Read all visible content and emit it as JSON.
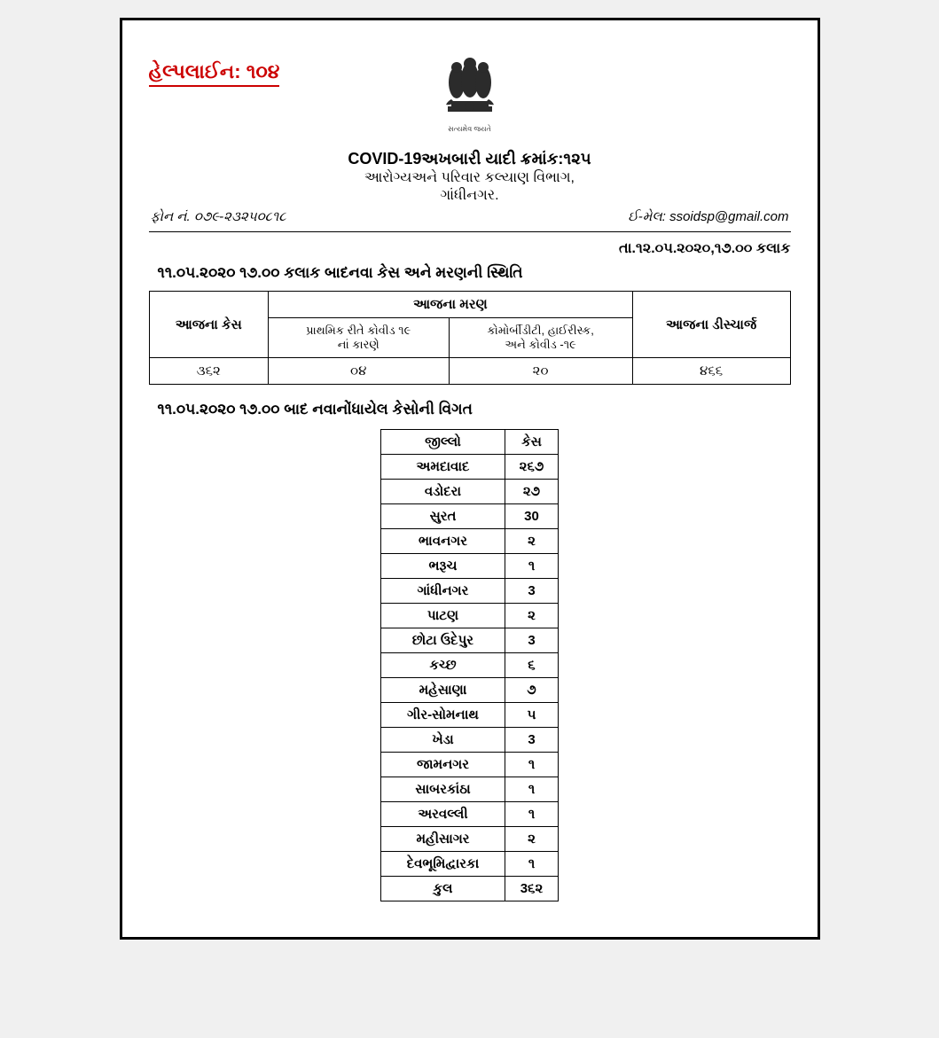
{
  "helpline": "હેલ્પલાઈન: ૧૦૪",
  "emblem_caption": "સત્યમેવ જયતે",
  "title_main": "COVID-19અખબારી યાદી ક્રમાંક:૧૨૫",
  "title_sub": "આરોગ્યઅને પરિવાર કલ્યાણ વિભાગ,",
  "title_city": "ગાંધીનગર.",
  "phone_label": "ફોન નં. ૦૭૯-૨૩૨૫૦૮૧૮",
  "email_label": "ઈ-મેલ:",
  "email_value": "ssoidsp@gmail.com",
  "date_line": "તા.૧૨.૦૫.૨૦૨૦,૧૭.૦૦ કલાક",
  "section_title": "૧૧.૦૫.૨૦૨૦ ૧૭.૦૦ કલાક બાદનવા કેસ અને મરણની સ્થિતિ",
  "summary": {
    "col1_header": "આજના કેસ",
    "col2_header": "આજના મરણ",
    "col3_header": "આજના ડીસ્ચાર્જ",
    "sub1_line1": "પ્રાથમિક રીતે કોવીડ ૧૯",
    "sub1_line2": "નાં કારણે",
    "sub2_line1": "કોમોર્બીડીટી, હાઈરીસ્ક,",
    "sub2_line2": "અને કોવીડ -૧૯",
    "today_cases": "૩૬૨",
    "death1": "૦૪",
    "death2": "૨૦",
    "discharge": "૪૬૬"
  },
  "detail_title": "૧૧.૦૫.૨૦૨૦ ૧૭.૦૦ બાદ નવાનોંધાયેલ કેસોની વિગત",
  "detail_headers": {
    "district": "જીલ્લો",
    "cases": "કેસ"
  },
  "detail_rows": [
    {
      "district": "અમદાવાદ",
      "cases": "૨૬૭"
    },
    {
      "district": "વડોદરા",
      "cases": "૨૭"
    },
    {
      "district": "સુરત",
      "cases": "30"
    },
    {
      "district": "ભાવનગર",
      "cases": "૨"
    },
    {
      "district": "ભરૂચ",
      "cases": "૧"
    },
    {
      "district": "ગાંધીનગર",
      "cases": "3"
    },
    {
      "district": "પાટણ",
      "cases": "૨"
    },
    {
      "district": "છોટા ઉદેપુર",
      "cases": "3"
    },
    {
      "district": "કચ્છ",
      "cases": "૬"
    },
    {
      "district": "મહેસાણા",
      "cases": "૭"
    },
    {
      "district": "ગીર-સોમનાથ",
      "cases": "૫"
    },
    {
      "district": "ખેડા",
      "cases": "3"
    },
    {
      "district": "જામનગર",
      "cases": "૧"
    },
    {
      "district": "સાબરકાંઠા",
      "cases": "૧"
    },
    {
      "district": "અરવલ્લી",
      "cases": "૧"
    },
    {
      "district": "મહીસાગર",
      "cases": "૨"
    },
    {
      "district": "દેવભૂમિદ્વારકા",
      "cases": "૧"
    },
    {
      "district": "કુલ",
      "cases": "3૬૨"
    }
  ],
  "colors": {
    "helpline": "#cc0000",
    "border": "#000000",
    "background": "#ffffff",
    "page_bg": "#f0f0f0"
  }
}
